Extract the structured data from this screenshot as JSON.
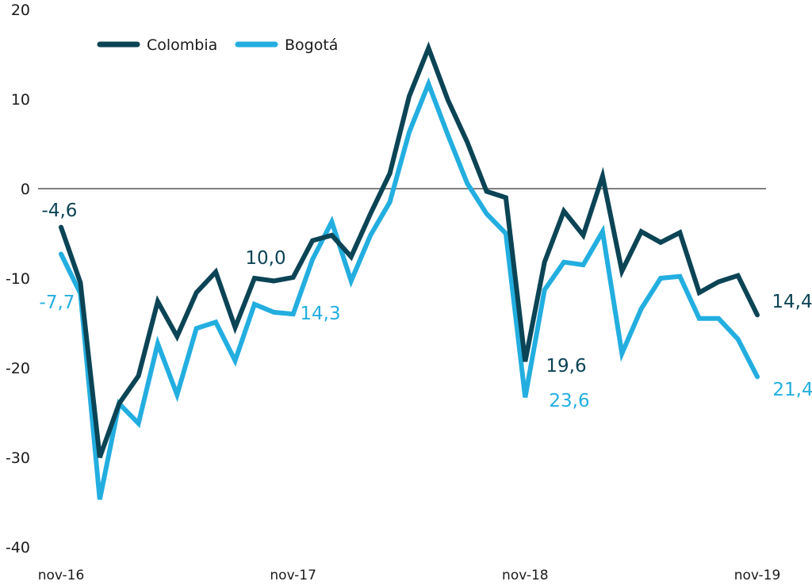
{
  "chart_data": {
    "type": "line",
    "title": "",
    "xlabel": "",
    "ylabel": "",
    "ylim": [
      -40,
      20
    ],
    "yticks": [
      20,
      10,
      0,
      -10,
      -20,
      -30,
      -40
    ],
    "ytick_labels": [
      "20",
      "10",
      "0",
      "-10",
      "-20",
      "-30",
      "-40"
    ],
    "x_tick_labels": [
      {
        "index": 0,
        "label": "nov-16"
      },
      {
        "index": 12,
        "label": "nov-17"
      },
      {
        "index": 24,
        "label": "nov-18"
      },
      {
        "index": 36,
        "label": "nov-19"
      }
    ],
    "grid": false,
    "zero_line": true,
    "legend_position": "top-left",
    "colors": {
      "colombia": "#0b4455",
      "bogota": "#23aee0",
      "zero_line": "#808080",
      "text": "#1a1a1a"
    },
    "series": [
      {
        "name": "Colombia",
        "key": "colombia",
        "values": [
          -4.3,
          -10.5,
          -30.0,
          -24.0,
          -20.9,
          -12.6,
          -16.5,
          -11.6,
          -9.3,
          -15.5,
          -10.0,
          -10.3,
          -9.9,
          -5.8,
          -5.2,
          -7.6,
          -2.8,
          1.7,
          10.3,
          15.7,
          9.9,
          5.2,
          -0.3,
          -1.0,
          -19.3,
          -8.2,
          -2.5,
          -5.2,
          1.4,
          -9.2,
          -4.8,
          -6.0,
          -4.9,
          -11.6,
          -10.4,
          -9.7,
          -14.1
        ]
      },
      {
        "name": "Bogotá",
        "key": "bogota",
        "values": [
          -7.3,
          -11.7,
          -34.7,
          -24.0,
          -26.2,
          -17.3,
          -23.0,
          -15.6,
          -14.9,
          -19.2,
          -12.9,
          -13.8,
          -14.0,
          -7.9,
          -3.7,
          -10.3,
          -5.2,
          -1.5,
          6.3,
          11.7,
          6.0,
          0.6,
          -2.8,
          -5.0,
          -23.3,
          -11.3,
          -8.2,
          -8.5,
          -4.8,
          -18.4,
          -13.4,
          -10.0,
          -9.8,
          -14.5,
          -14.5,
          -16.8,
          -21.0
        ]
      }
    ],
    "annotations": [
      {
        "text": "-4,6",
        "series": "colombia"
      },
      {
        "text": "-7,7",
        "series": "bogota"
      },
      {
        "text": "10,0",
        "series": "colombia"
      },
      {
        "text": "14,3",
        "series": "bogota"
      },
      {
        "text": "19,6",
        "series": "colombia"
      },
      {
        "text": "23,6",
        "series": "bogota"
      },
      {
        "text": "14,4",
        "series": "colombia"
      },
      {
        "text": "21,4",
        "series": "bogota"
      }
    ]
  }
}
